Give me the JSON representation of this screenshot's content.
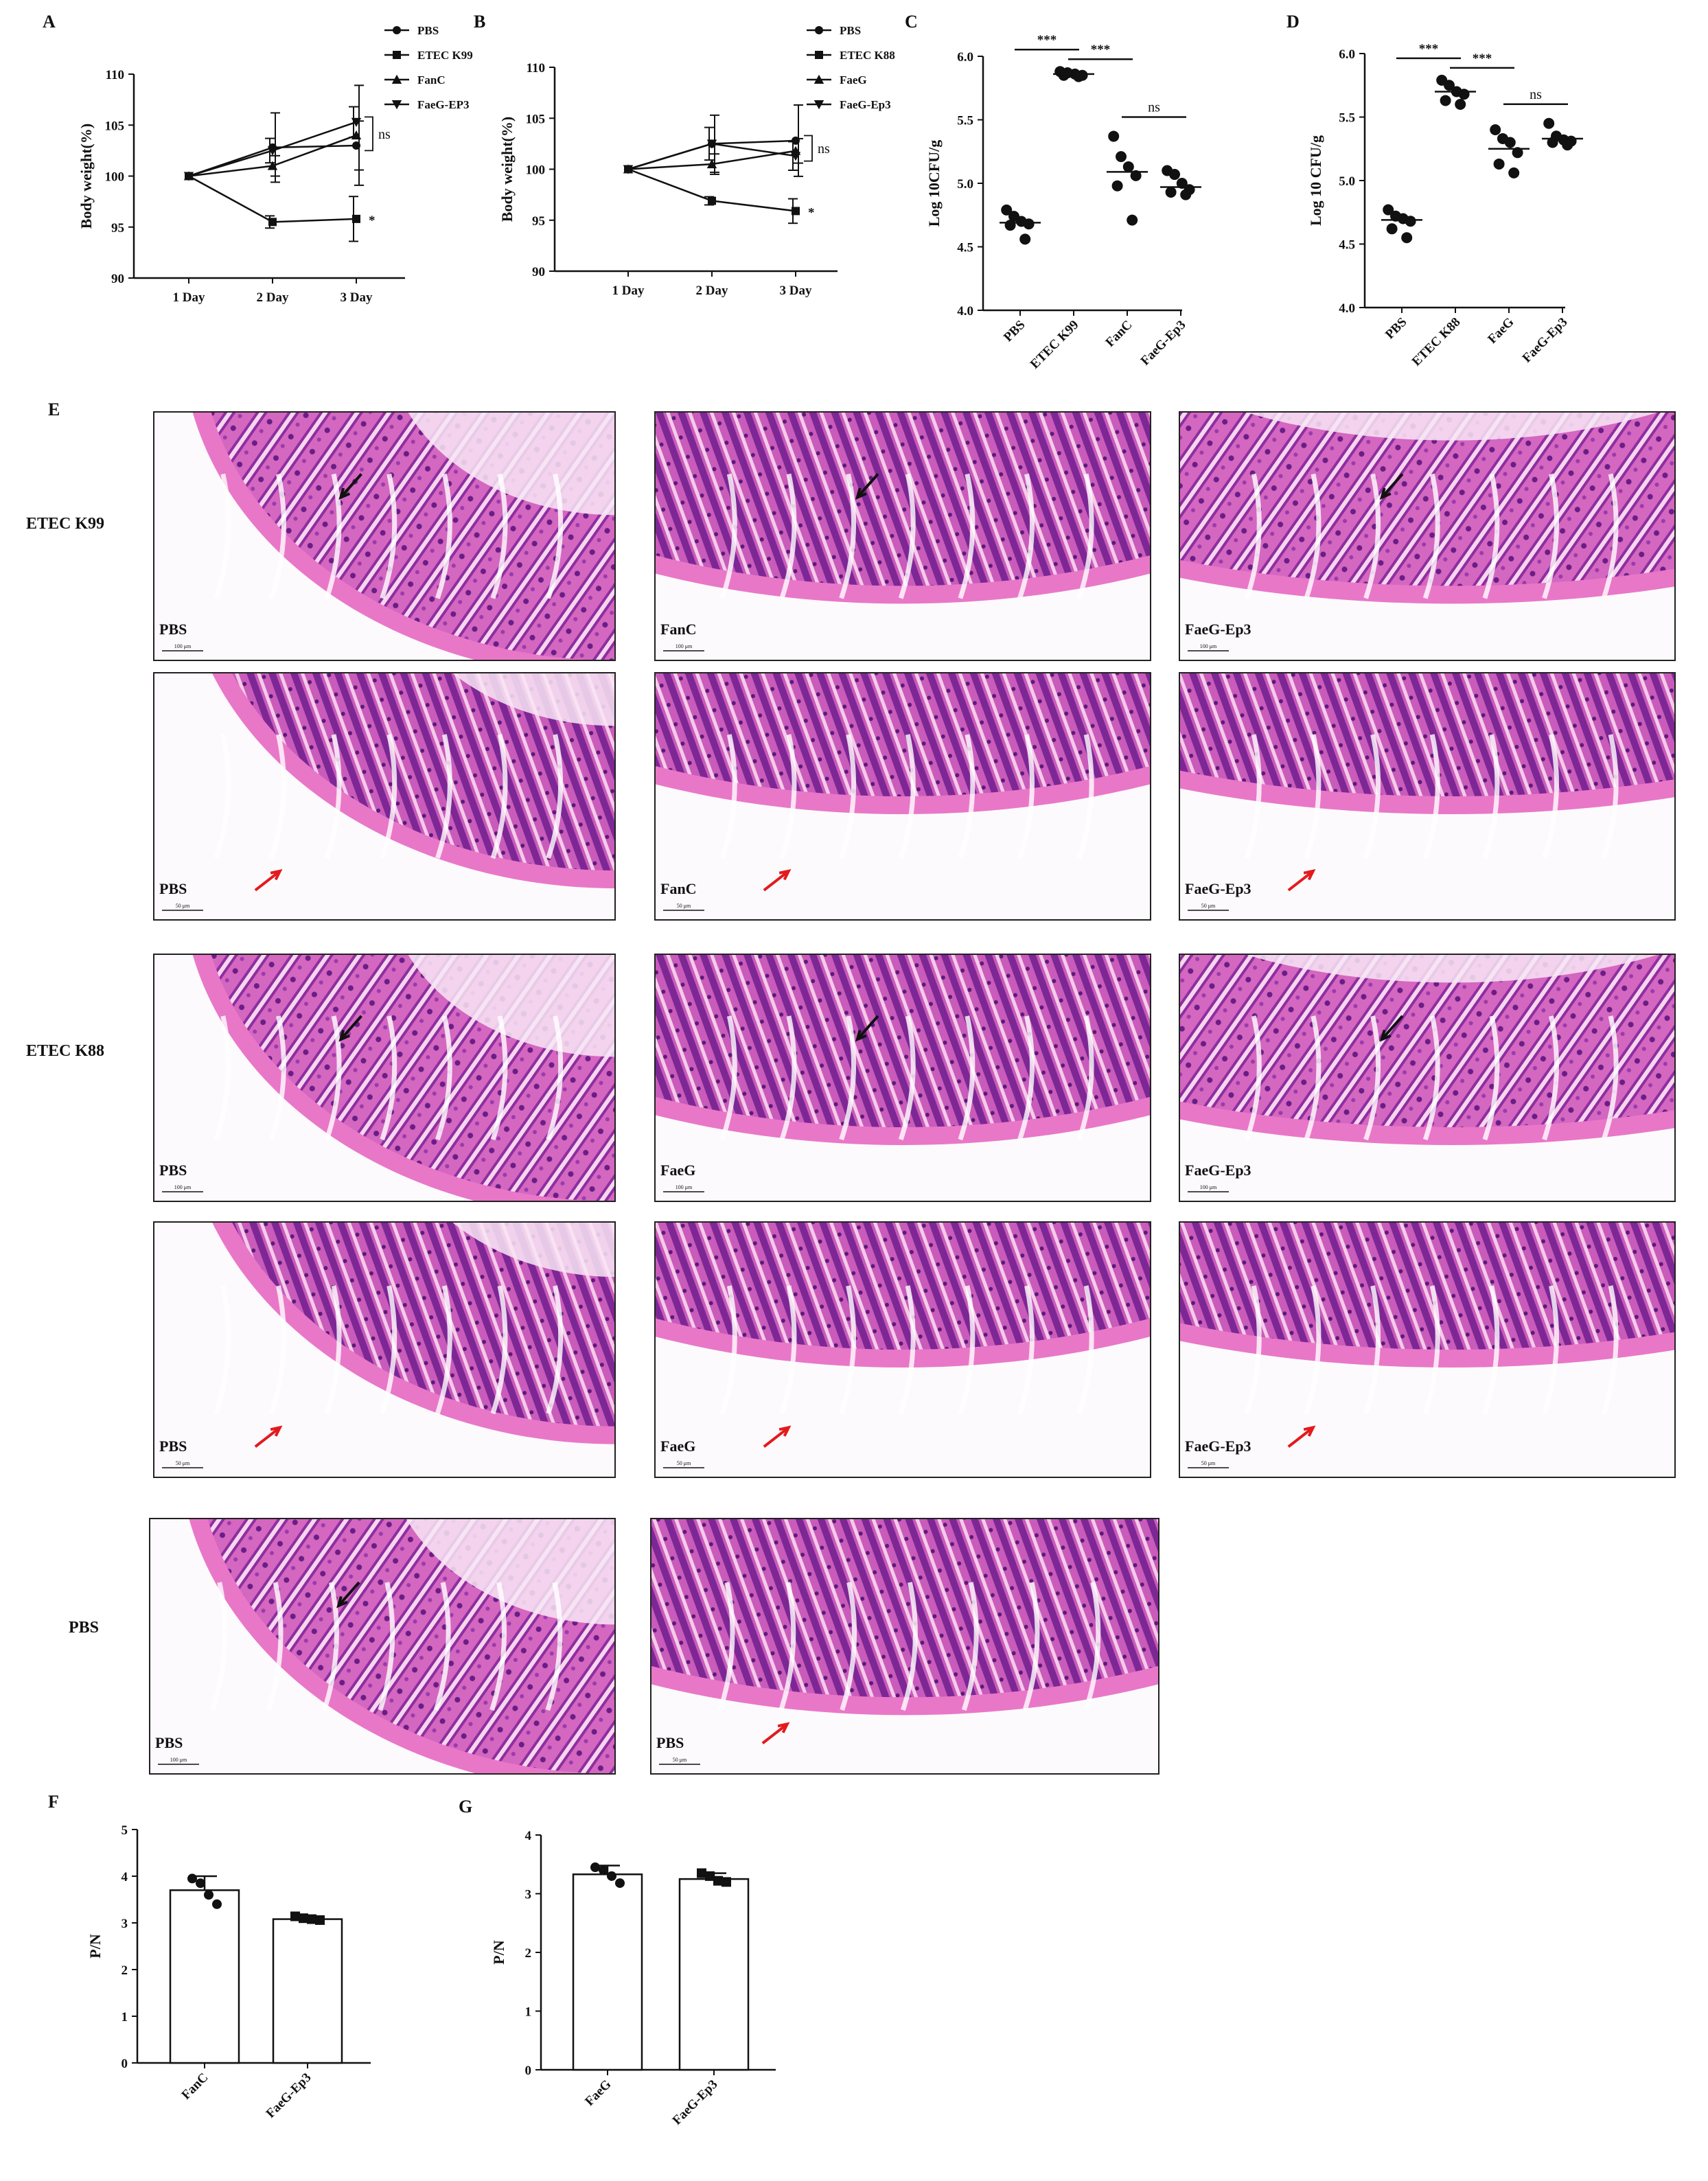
{
  "panel_letters": {
    "A": "A",
    "B": "B",
    "C": "C",
    "D": "D",
    "E": "E",
    "F": "F",
    "G": "G"
  },
  "colors": {
    "he_dark": "#7a2396",
    "he_light": "#e977c8",
    "he_pink": "#f0a8dc",
    "arrow_black": "#111111",
    "arrow_red": "#e31a1c"
  },
  "chart_data": [
    {
      "id": "A",
      "type": "line",
      "ylabel": "Body weight(%)",
      "categories": [
        "1 Day",
        "2 Day",
        "3 Day"
      ],
      "ylim": [
        90,
        110
      ],
      "yticks": [
        90,
        95,
        100,
        105,
        110
      ],
      "series": [
        {
          "name": "PBS",
          "marker": "circle",
          "values": [
            100,
            102.8,
            103.0
          ],
          "err": [
            0,
            3.4,
            2.4
          ]
        },
        {
          "name": "ETEC K99",
          "marker": "square",
          "values": [
            100,
            95.5,
            95.8
          ],
          "err": [
            0,
            0.6,
            2.2
          ]
        },
        {
          "name": "FanC",
          "marker": "triangle-up",
          "values": [
            100,
            101.0,
            104.0
          ],
          "err": [
            0,
            1.0,
            4.9
          ]
        },
        {
          "name": "FaeG-EP3",
          "marker": "triangle-down",
          "values": [
            100,
            102.5,
            105.3
          ],
          "err": [
            0,
            1.2,
            1.5
          ]
        }
      ],
      "annotations": {
        "ns": "ns",
        "star": "*"
      }
    },
    {
      "id": "B",
      "type": "line",
      "ylabel": "Body weight(%)",
      "categories": [
        "1 Day",
        "2 Day",
        "3 Day"
      ],
      "ylim": [
        90,
        110
      ],
      "yticks": [
        90,
        95,
        100,
        105,
        110
      ],
      "series": [
        {
          "name": "PBS",
          "marker": "circle",
          "values": [
            100,
            102.5,
            102.8
          ],
          "err": [
            0,
            2.8,
            3.5
          ]
        },
        {
          "name": "ETEC K88",
          "marker": "square",
          "values": [
            100,
            96.9,
            95.9
          ],
          "err": [
            0,
            0.4,
            1.2
          ]
        },
        {
          "name": "FaeG",
          "marker": "triangle-up",
          "values": [
            100,
            100.5,
            101.8
          ],
          "err": [
            0,
            1.0,
            1.2
          ]
        },
        {
          "name": "FaeG-Ep3",
          "marker": "triangle-down",
          "values": [
            100,
            102.5,
            101.3
          ],
          "err": [
            0,
            1.6,
            1.4
          ]
        }
      ],
      "annotations": {
        "ns": "ns",
        "star": "*"
      }
    },
    {
      "id": "C",
      "type": "scatter",
      "ylabel": "Log 10CFU/g",
      "categories": [
        "PBS",
        "ETEC K99",
        "FanC",
        "FaeG-Ep3"
      ],
      "ylim": [
        4.0,
        6.0
      ],
      "yticks": [
        "4.0",
        "4.5",
        "5.0",
        "5.5",
        "6.0"
      ],
      "groups": [
        {
          "name": "PBS",
          "mean": 4.69,
          "points": [
            4.79,
            4.74,
            4.7,
            4.68,
            4.67,
            4.56
          ]
        },
        {
          "name": "ETEC K99",
          "mean": 5.86,
          "points": [
            5.88,
            5.87,
            5.86,
            5.85,
            5.85,
            5.84
          ]
        },
        {
          "name": "FanC",
          "mean": 5.09,
          "points": [
            5.37,
            5.21,
            5.13,
            5.06,
            4.98,
            4.71
          ]
        },
        {
          "name": "FaeG-Ep3",
          "mean": 4.97,
          "points": [
            5.1,
            5.07,
            5.0,
            4.95,
            4.93,
            4.91
          ]
        }
      ],
      "sig": [
        {
          "from": 0,
          "to": 1,
          "label": "***"
        },
        {
          "from": 1,
          "to": 2,
          "label": "***"
        },
        {
          "from": 2,
          "to": 3,
          "label": "ns"
        }
      ]
    },
    {
      "id": "D",
      "type": "scatter",
      "ylabel": "Log 10 CFU/g",
      "categories": [
        "PBS",
        "ETEC K88",
        "FaeG",
        "FaeG-Ep3"
      ],
      "ylim": [
        4.0,
        6.0
      ],
      "yticks": [
        "4.0",
        "4.5",
        "5.0",
        "5.5",
        "6.0"
      ],
      "groups": [
        {
          "name": "PBS",
          "mean": 4.69,
          "points": [
            4.77,
            4.72,
            4.7,
            4.68,
            4.62,
            4.55
          ]
        },
        {
          "name": "ETEC K88",
          "mean": 5.7,
          "points": [
            5.79,
            5.75,
            5.7,
            5.68,
            5.63,
            5.6
          ]
        },
        {
          "name": "FaeG",
          "mean": 5.25,
          "points": [
            5.4,
            5.33,
            5.3,
            5.22,
            5.13,
            5.06
          ]
        },
        {
          "name": "FaeG-Ep3",
          "mean": 5.33,
          "points": [
            5.45,
            5.35,
            5.32,
            5.31,
            5.3,
            5.28
          ]
        }
      ],
      "sig": [
        {
          "from": 0,
          "to": 1,
          "label": "***"
        },
        {
          "from": 1,
          "to": 2,
          "label": "***"
        },
        {
          "from": 2,
          "to": 3,
          "label": "ns"
        }
      ]
    },
    {
      "id": "F",
      "type": "bar",
      "ylabel": "P/N",
      "categories": [
        "FanC",
        "FaeG-Ep3"
      ],
      "ylim": [
        0,
        5
      ],
      "yticks": [
        0,
        1,
        2,
        3,
        4,
        5
      ],
      "values": [
        3.7,
        3.08
      ],
      "err": [
        0.3,
        0.05
      ],
      "points": [
        [
          3.95,
          3.85,
          3.6,
          3.4
        ],
        [
          3.14,
          3.1,
          3.08,
          3.06
        ]
      ]
    },
    {
      "id": "G",
      "type": "bar",
      "ylabel": "P/N",
      "categories": [
        "FaeG",
        "FaeG-Ep3"
      ],
      "ylim": [
        0,
        4
      ],
      "yticks": [
        0,
        1,
        2,
        3,
        4
      ],
      "values": [
        3.33,
        3.25
      ],
      "err": [
        0.15,
        0.1
      ],
      "points": [
        [
          3.45,
          3.4,
          3.3,
          3.18
        ],
        [
          3.35,
          3.3,
          3.22,
          3.2
        ]
      ]
    }
  ],
  "histology": {
    "row_labels": {
      "k99": "ETEC K99",
      "k88": "ETEC K88",
      "pbs": "PBS"
    },
    "tiles": [
      {
        "label": "PBS",
        "scale": "100 μm",
        "arrow": "black"
      },
      {
        "label": "FanC",
        "scale": "100 μm",
        "arrow": "black"
      },
      {
        "label": "FaeG-Ep3",
        "scale": "100 μm",
        "arrow": "black"
      },
      {
        "label": "PBS",
        "scale": "50 μm",
        "arrow": "red"
      },
      {
        "label": "FanC",
        "scale": "50 μm",
        "arrow": "red"
      },
      {
        "label": "FaeG-Ep3",
        "scale": "50 μm",
        "arrow": "red"
      },
      {
        "label": "PBS",
        "scale": "100 μm",
        "arrow": "black"
      },
      {
        "label": "FaeG",
        "scale": "100 μm",
        "arrow": "black"
      },
      {
        "label": "FaeG-Ep3",
        "scale": "100 μm",
        "arrow": "black"
      },
      {
        "label": "PBS",
        "scale": "50 μm",
        "arrow": "red"
      },
      {
        "label": "FaeG",
        "scale": "50 μm",
        "arrow": "red"
      },
      {
        "label": "FaeG-Ep3",
        "scale": "50 μm",
        "arrow": "red"
      },
      {
        "label": "PBS",
        "scale": "100 μm",
        "arrow": "black"
      },
      {
        "label": "PBS",
        "scale": "50 μm",
        "arrow": "red"
      }
    ]
  }
}
